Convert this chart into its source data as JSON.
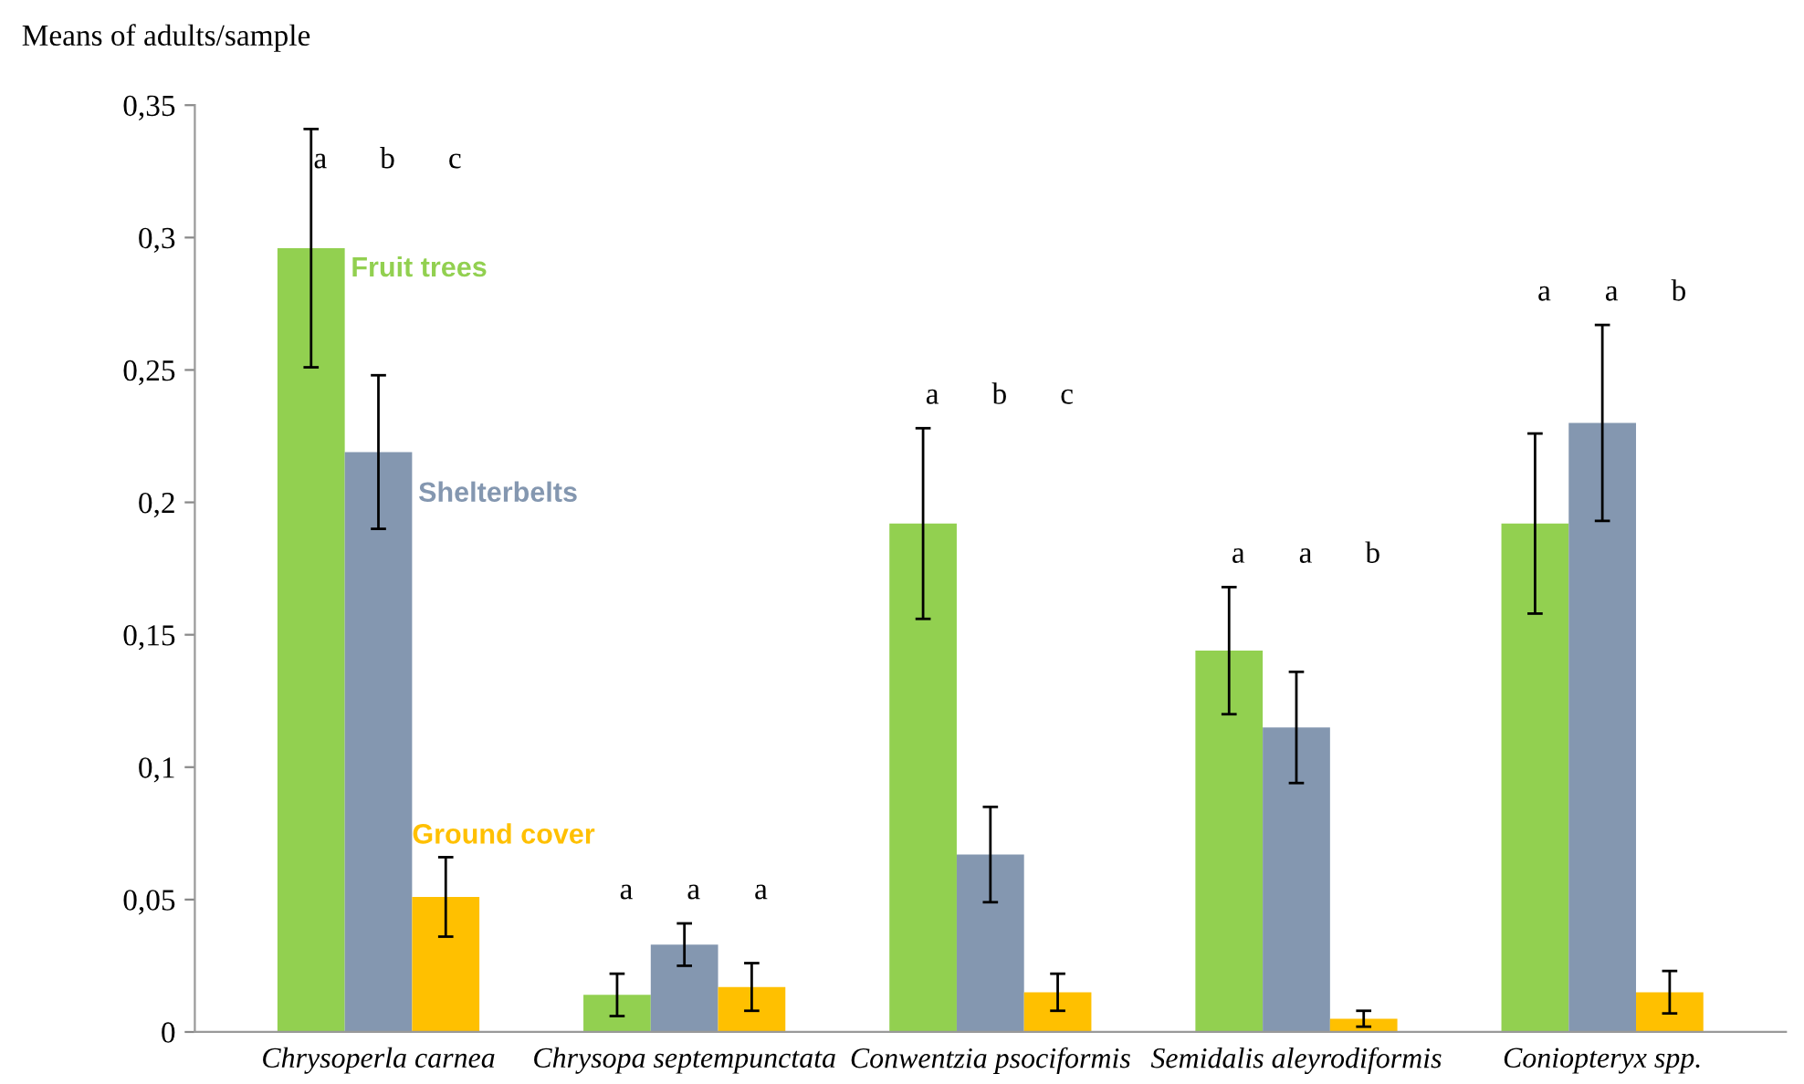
{
  "chart_data": {
    "type": "bar",
    "ylabel": "Means of adults/sample",
    "categories": [
      "Chrysoperla carnea",
      "Chrysopa septempunctata",
      "Conwentzia psociformis",
      "Semidalis aleyrodiformis",
      "Coniopteryx spp."
    ],
    "series": [
      {
        "name": "Fruit trees",
        "color": "#92d050",
        "values": [
          0.296,
          0.014,
          0.192,
          0.144,
          0.192
        ],
        "errors": [
          0.045,
          0.008,
          0.036,
          0.024,
          0.034
        ]
      },
      {
        "name": "Shelterbelts",
        "color": "#8497b0",
        "values": [
          0.219,
          0.033,
          0.067,
          0.115,
          0.23
        ],
        "errors": [
          0.029,
          0.008,
          0.018,
          0.021,
          0.037
        ]
      },
      {
        "name": "Ground cover",
        "color": "#ffc000",
        "values": [
          0.051,
          0.017,
          0.015,
          0.005,
          0.015
        ],
        "errors": [
          0.015,
          0.009,
          0.007,
          0.003,
          0.008
        ]
      }
    ],
    "ylim": [
      0,
      0.35
    ],
    "yticks": [
      0,
      {
        "value": 0.05,
        "label": "0,05"
      },
      {
        "value": 0.1,
        "label": "0,1"
      },
      {
        "value": 0.15,
        "label": "0,15"
      },
      {
        "value": 0.2,
        "label": "0,2"
      },
      {
        "value": 0.25,
        "label": "0,25"
      },
      {
        "value": 0.3,
        "label": "0,3"
      },
      {
        "value": 0.35,
        "label": "0,35"
      }
    ],
    "grid": false,
    "legend": false,
    "annotations": [
      "a",
      "b",
      "c",
      "a",
      "a",
      "a",
      "a",
      "b",
      "c",
      "a",
      "a",
      "b",
      "a",
      "a",
      "b"
    ]
  }
}
